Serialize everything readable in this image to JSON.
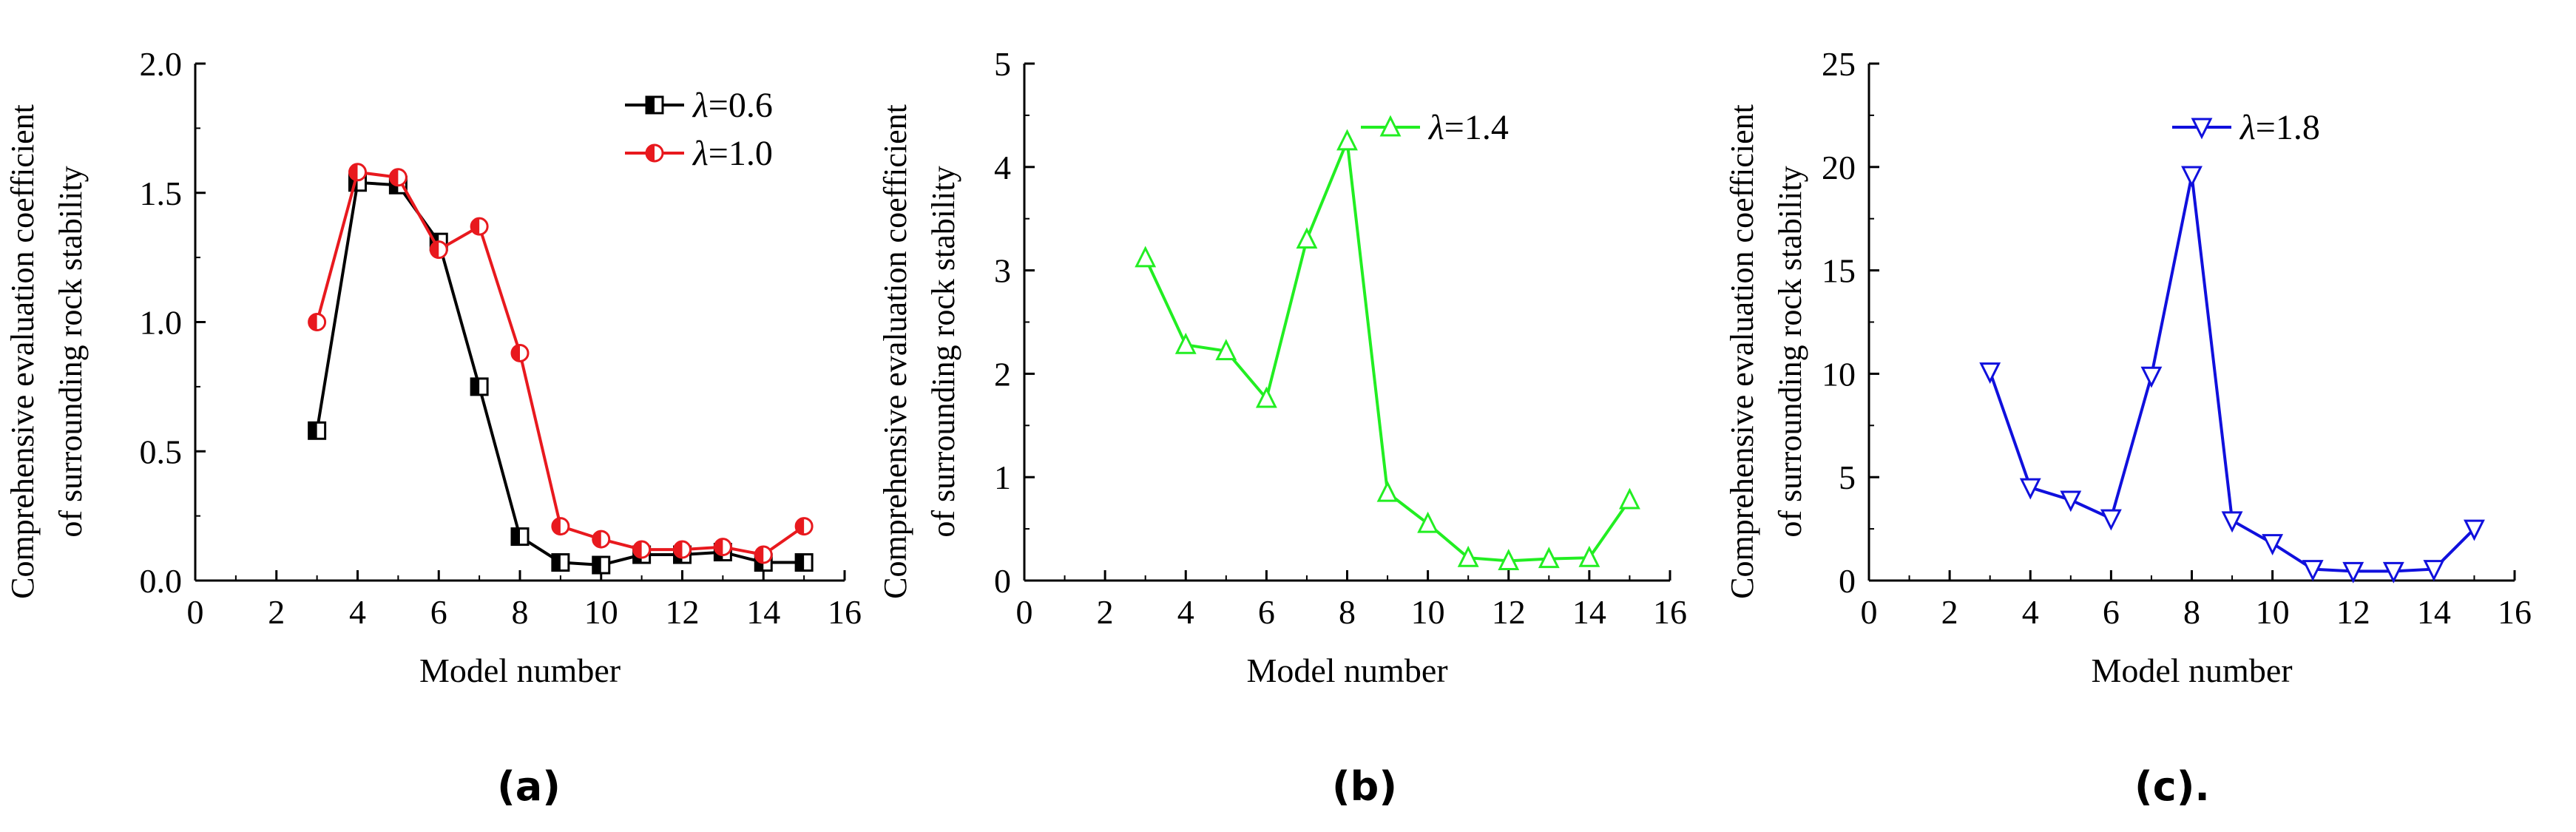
{
  "chart_data": [
    {
      "type": "line",
      "xlabel": "Model number",
      "ylabel_lines": [
        "Comprehensive evaluation coefficient",
        "of surrounding rock stability"
      ],
      "xlim": [
        0,
        16
      ],
      "ylim": [
        0,
        2.0
      ],
      "xticks": [
        "0",
        "2",
        "4",
        "6",
        "8",
        "10",
        "12",
        "14",
        "16"
      ],
      "yticks": [
        "0.0",
        "0.5",
        "1.0",
        "1.5",
        "2.0"
      ],
      "legend_placement": "top-right",
      "grid": false,
      "panel_label": "(a)",
      "series": [
        {
          "name": "λ=0.6",
          "name_symbol": "λ",
          "name_rest": "=0.6",
          "color": "#000000",
          "marker": "half-square",
          "x": [
            3,
            4,
            5,
            6,
            7,
            8,
            9,
            10,
            11,
            12,
            13,
            14,
            15
          ],
          "values": [
            0.58,
            1.54,
            1.53,
            1.31,
            0.75,
            0.17,
            0.07,
            0.06,
            0.1,
            0.1,
            0.11,
            0.07,
            0.07
          ]
        },
        {
          "name": "λ=1.0",
          "name_symbol": "λ",
          "name_rest": "=1.0",
          "color": "#e8191e",
          "marker": "half-circle",
          "x": [
            3,
            4,
            5,
            6,
            7,
            8,
            9,
            10,
            11,
            12,
            13,
            14,
            15
          ],
          "values": [
            1.0,
            1.58,
            1.56,
            1.28,
            1.37,
            0.88,
            0.21,
            0.16,
            0.12,
            0.12,
            0.13,
            0.1,
            0.21
          ]
        }
      ]
    },
    {
      "type": "line",
      "xlabel": "Model number",
      "ylabel_lines": [
        "Comprehensive evaluation coefficient",
        "of surrounding rock stability"
      ],
      "xlim": [
        0,
        16
      ],
      "ylim": [
        0,
        5
      ],
      "xticks": [
        "0",
        "2",
        "4",
        "6",
        "8",
        "10",
        "12",
        "14",
        "16"
      ],
      "yticks": [
        "0",
        "1",
        "2",
        "3",
        "4",
        "5"
      ],
      "legend_placement": "top-center",
      "grid": false,
      "panel_label": "(b)",
      "series": [
        {
          "name": "λ=1.4",
          "name_symbol": "λ",
          "name_rest": "=1.4",
          "color": "#22ee22",
          "marker": "triangle-up",
          "x": [
            3,
            4,
            5,
            6,
            7,
            8,
            9,
            10,
            11,
            12,
            13,
            14,
            15
          ],
          "values": [
            3.12,
            2.28,
            2.22,
            1.76,
            3.3,
            4.25,
            0.85,
            0.55,
            0.22,
            0.19,
            0.21,
            0.22,
            0.78
          ]
        }
      ]
    },
    {
      "type": "line",
      "xlabel": "Model number",
      "ylabel_lines": [
        "Comprehensive evaluation coefficient",
        "of surrounding rock stability"
      ],
      "xlim": [
        0,
        16
      ],
      "ylim": [
        0,
        25
      ],
      "xticks": [
        "0",
        "2",
        "4",
        "6",
        "8",
        "10",
        "12",
        "14",
        "16"
      ],
      "yticks": [
        "0",
        "5",
        "10",
        "15",
        "20",
        "25"
      ],
      "legend_placement": "top-center",
      "grid": false,
      "panel_label": "(c).",
      "series": [
        {
          "name": "λ=1.8",
          "name_symbol": "λ",
          "name_rest": "=1.8",
          "color": "#1010dd",
          "marker": "triangle-down",
          "x": [
            3,
            4,
            5,
            6,
            7,
            8,
            9,
            10,
            11,
            12,
            13,
            14,
            15
          ],
          "values": [
            10.1,
            4.5,
            3.9,
            3.0,
            9.9,
            19.6,
            2.9,
            1.8,
            0.55,
            0.45,
            0.45,
            0.55,
            2.5
          ]
        }
      ]
    }
  ]
}
